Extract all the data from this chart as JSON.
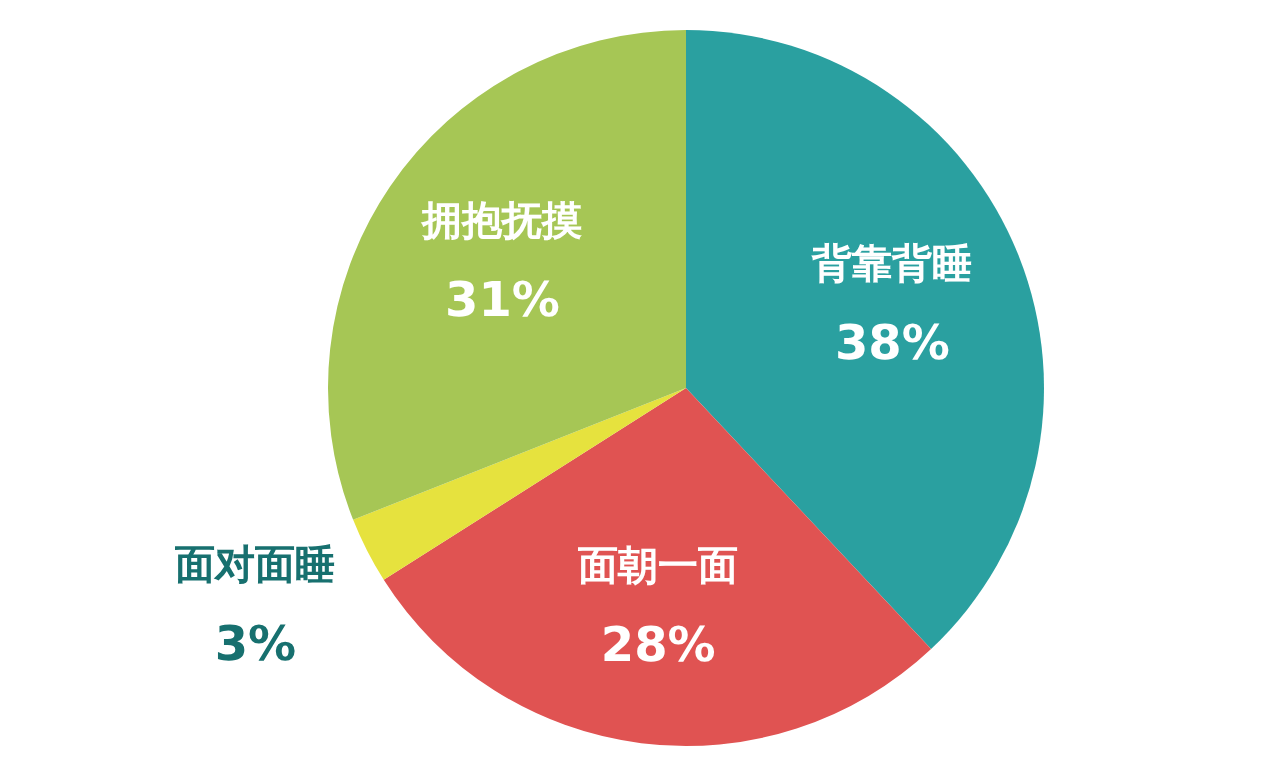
{
  "chart_data": {
    "type": "pie",
    "categories": [
      "背靠背睡",
      "面朝一面",
      "面对面睡",
      "拥抱抚摸"
    ],
    "values": [
      38,
      28,
      3,
      31
    ],
    "value_labels": [
      "38%",
      "28%",
      "3%",
      "31%"
    ],
    "colors": [
      "#2aa0a0",
      "#e05352",
      "#e6e23e",
      "#a6c655"
    ],
    "legend": false
  }
}
